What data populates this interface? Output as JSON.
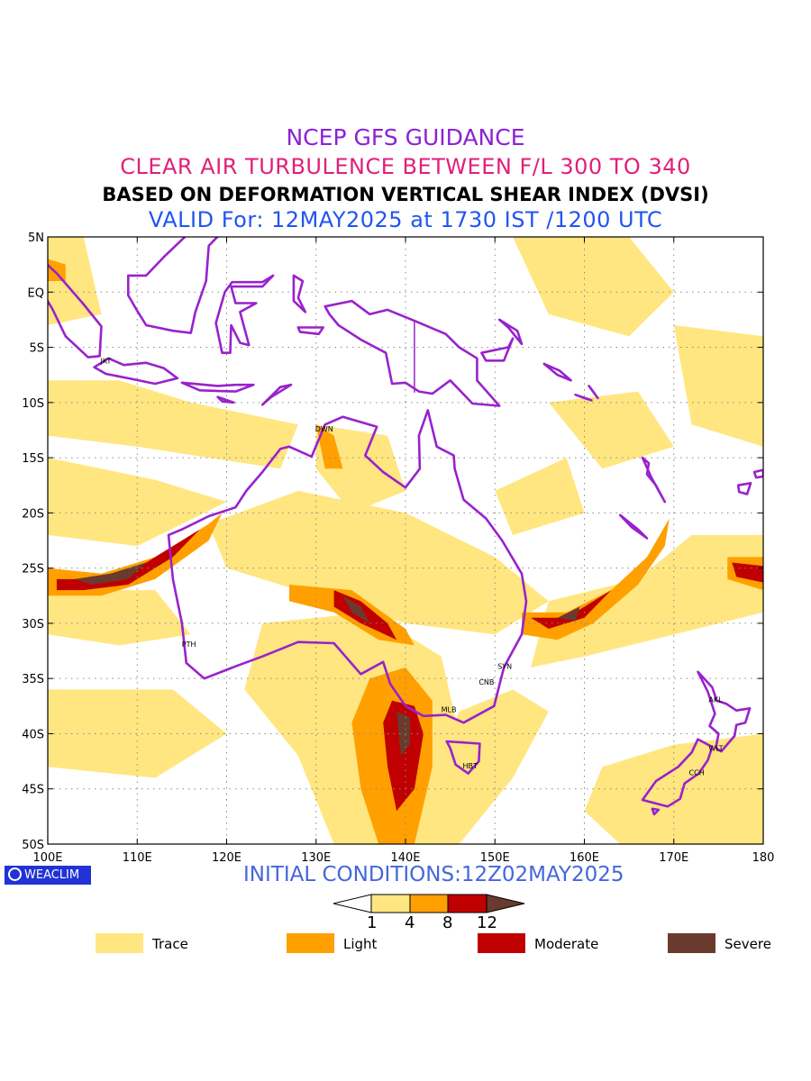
{
  "titles": {
    "line1": "NCEP GFS GUIDANCE",
    "line2": "CLEAR AIR TURBULENCE BETWEEN F/L 300 TO 340",
    "line3": "BASED ON DEFORMATION VERTICAL SHEAR INDEX (DVSI)",
    "line4": "VALID For: 12MAY2025 at 1730 IST /1200 UTC"
  },
  "colors": {
    "line1": "#8b22d6",
    "line2": "#e0207a",
    "line3": "#000000",
    "line4": "#2255ee",
    "initial": "#4466dd",
    "coast": "#9922cc",
    "trace": "#ffe680",
    "light": "#ffa000",
    "moderate": "#c00000",
    "severe": "#6b3a2e"
  },
  "map": {
    "lon_range": [
      100,
      180
    ],
    "lat_range": [
      -50,
      5
    ],
    "lat_labels": [
      "5N",
      "EQ",
      "5S",
      "10S",
      "15S",
      "20S",
      "25S",
      "30S",
      "35S",
      "40S",
      "45S",
      "50S"
    ],
    "lon_labels": [
      "100E",
      "110E",
      "120E",
      "130E",
      "140E",
      "150E",
      "160E",
      "170E",
      "180"
    ],
    "grid": "dotted",
    "cities": [
      {
        "name": "JKT",
        "lon": 106.8,
        "lat": -6.2
      },
      {
        "name": "DWN",
        "lon": 130.8,
        "lat": -12.4
      },
      {
        "name": "PTH",
        "lon": 115.9,
        "lat": -31.9
      },
      {
        "name": "SYN",
        "lon": 151.2,
        "lat": -33.9
      },
      {
        "name": "CNB",
        "lon": 149.1,
        "lat": -35.3
      },
      {
        "name": "MLB",
        "lon": 144.9,
        "lat": -37.8
      },
      {
        "name": "HBT",
        "lon": 147.3,
        "lat": -42.9
      },
      {
        "name": "AKL",
        "lon": 174.8,
        "lat": -36.9
      },
      {
        "name": "WLT",
        "lon": 174.8,
        "lat": -41.3
      },
      {
        "name": "CCH",
        "lon": 172.6,
        "lat": -43.5
      }
    ]
  },
  "footer": {
    "logo": "WEACLIM",
    "initial": "INITIAL CONDITIONS:12Z02MAY2025"
  },
  "scale": {
    "labels": [
      "1",
      "4",
      "8",
      "12"
    ]
  },
  "legend": [
    {
      "label": "Trace",
      "key": "trace"
    },
    {
      "label": "Light",
      "key": "light"
    },
    {
      "label": "Moderate",
      "key": "moderate"
    },
    {
      "label": "Severe",
      "key": "severe"
    }
  ]
}
